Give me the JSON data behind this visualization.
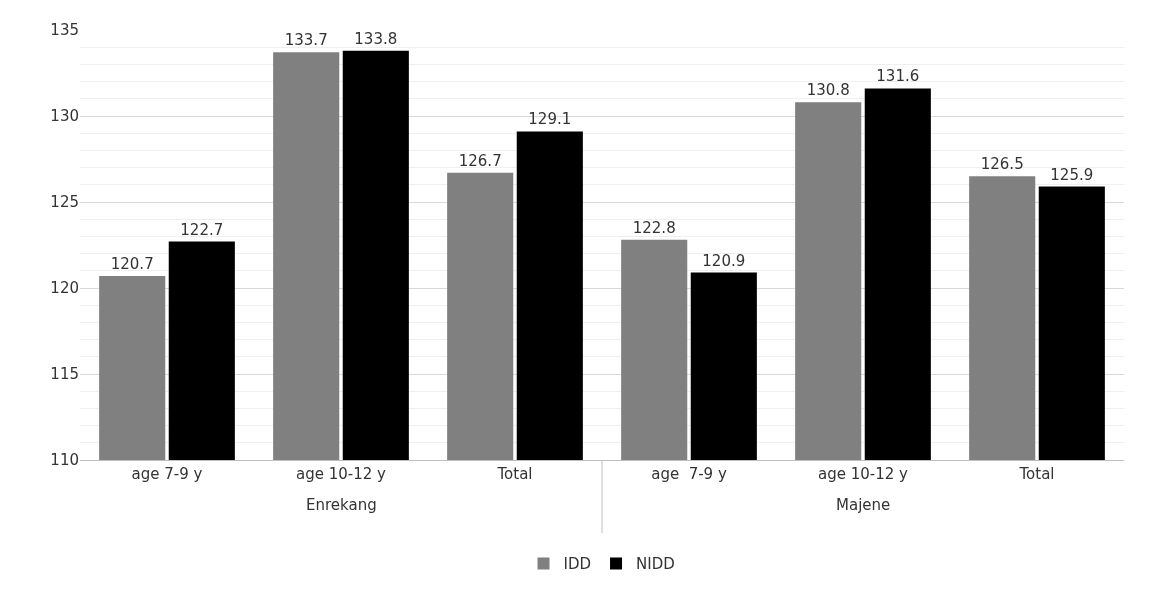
{
  "chart_data": {
    "type": "bar",
    "categories": [
      "age 7-9 y",
      "age 10-12 y",
      "Total",
      "age  7-9 y",
      "age 10-12 y",
      "Total"
    ],
    "series": [
      {
        "name": "IDD",
        "color": "#808080",
        "values": [
          120.7,
          133.7,
          126.7,
          122.8,
          130.8,
          126.5
        ]
      },
      {
        "name": "NIDD",
        "color": "#000000",
        "values": [
          122.7,
          133.8,
          129.1,
          120.9,
          131.6,
          125.9
        ]
      }
    ],
    "annotations": [
      "Enrekang",
      "Majene"
    ],
    "ylim": [
      110,
      135
    ],
    "yticks": [
      110,
      115,
      120,
      125,
      130,
      135
    ],
    "grid": true,
    "legend": "bottom",
    "data_labels": true
  }
}
